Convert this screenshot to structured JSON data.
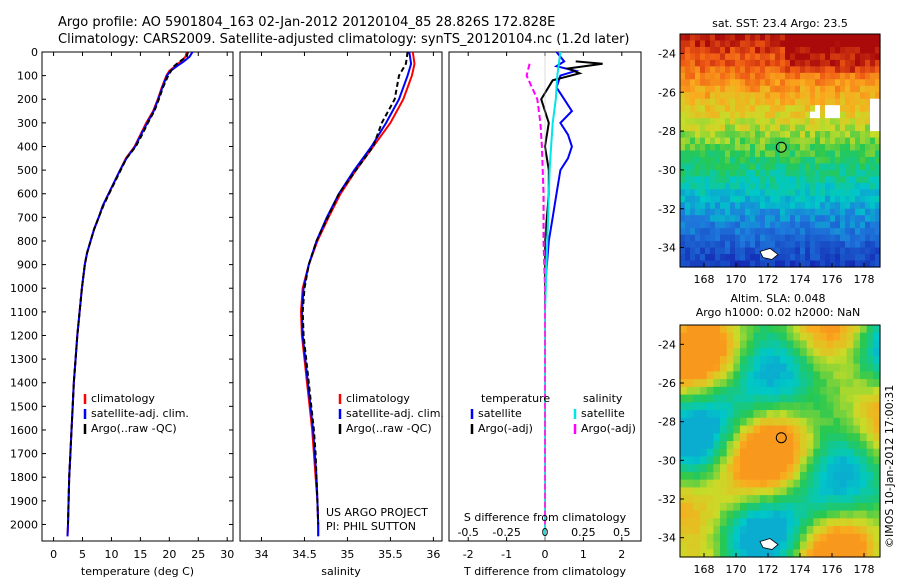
{
  "titles": {
    "line1": "Argo profile: AO 5901804_163 02-Jan-2012 20120104_85 28.826S 172.828E",
    "line2": "Climatology: CARS2009. Satellite-adjusted climatology: synTS_20120104.nc (1.2d later)"
  },
  "colors": {
    "climatology": "#ff0000",
    "satellite": "#0000ff",
    "argo": "#000000",
    "s_satellite": "#00e5e5",
    "s_argo": "#ff00ff"
  },
  "chart_data": [
    {
      "type": "line",
      "name": "temperature-profile",
      "xlabel": "temperature (deg C)",
      "ylabel": "",
      "xlim": [
        -2,
        31
      ],
      "ylim": [
        0,
        2070
      ],
      "y_reversed": true,
      "xticks": [
        0,
        5,
        10,
        15,
        20,
        25,
        30
      ],
      "yticks": [
        0,
        100,
        200,
        300,
        400,
        500,
        600,
        700,
        800,
        900,
        1000,
        1100,
        1200,
        1300,
        1400,
        1500,
        1600,
        1700,
        1800,
        1900,
        2000
      ],
      "legend": [
        "climatology",
        "satellite-adj. clim.",
        "Argo(..raw -QC)"
      ],
      "series": [
        {
          "name": "climatology",
          "color": "#ff0000",
          "dash": "",
          "points": [
            [
              23.0,
              0
            ],
            [
              22.8,
              20
            ],
            [
              22.0,
              40
            ],
            [
              21.0,
              60
            ],
            [
              20.0,
              80
            ],
            [
              19.5,
              100
            ],
            [
              18.7,
              150
            ],
            [
              18.0,
              200
            ],
            [
              17.2,
              250
            ],
            [
              16.0,
              300
            ],
            [
              15.0,
              350
            ],
            [
              14.0,
              400
            ],
            [
              12.5,
              450
            ],
            [
              11.5,
              500
            ],
            [
              10.5,
              550
            ],
            [
              9.5,
              600
            ],
            [
              8.5,
              650
            ],
            [
              7.8,
              700
            ],
            [
              7.0,
              750
            ],
            [
              6.4,
              800
            ],
            [
              5.8,
              850
            ],
            [
              5.4,
              900
            ],
            [
              4.9,
              1000
            ],
            [
              4.5,
              1100
            ],
            [
              4.1,
              1200
            ],
            [
              3.8,
              1300
            ],
            [
              3.5,
              1400
            ],
            [
              3.3,
              1500
            ],
            [
              3.1,
              1600
            ],
            [
              2.9,
              1700
            ],
            [
              2.7,
              1800
            ],
            [
              2.6,
              1900
            ],
            [
              2.5,
              2000
            ],
            [
              2.4,
              2050
            ]
          ]
        },
        {
          "name": "satellite-adj. clim.",
          "color": "#0000ff",
          "dash": "",
          "points": [
            [
              24.0,
              0
            ],
            [
              23.5,
              20
            ],
            [
              22.5,
              40
            ],
            [
              21.3,
              60
            ],
            [
              20.2,
              80
            ],
            [
              19.6,
              100
            ],
            [
              18.8,
              150
            ],
            [
              18.1,
              200
            ],
            [
              17.3,
              250
            ],
            [
              16.2,
              300
            ],
            [
              15.1,
              350
            ],
            [
              14.1,
              400
            ],
            [
              12.6,
              450
            ],
            [
              11.5,
              500
            ],
            [
              10.5,
              550
            ],
            [
              9.5,
              600
            ],
            [
              8.5,
              650
            ],
            [
              7.8,
              700
            ],
            [
              7.0,
              750
            ],
            [
              6.4,
              800
            ],
            [
              5.8,
              850
            ],
            [
              5.4,
              900
            ],
            [
              4.9,
              1000
            ],
            [
              4.5,
              1100
            ],
            [
              4.1,
              1200
            ],
            [
              3.8,
              1300
            ],
            [
              3.5,
              1400
            ],
            [
              3.3,
              1500
            ],
            [
              3.1,
              1600
            ],
            [
              2.9,
              1700
            ],
            [
              2.7,
              1800
            ],
            [
              2.6,
              1900
            ],
            [
              2.5,
              2000
            ],
            [
              2.4,
              2050
            ]
          ]
        },
        {
          "name": "Argo(..raw -QC)",
          "color": "#000000",
          "dash": "5,3",
          "points": [
            [
              23.2,
              0
            ],
            [
              23.0,
              20
            ],
            [
              21.8,
              40
            ],
            [
              20.8,
              60
            ],
            [
              20.3,
              80
            ],
            [
              19.8,
              100
            ],
            [
              18.9,
              150
            ],
            [
              18.2,
              200
            ],
            [
              17.4,
              250
            ],
            [
              16.3,
              300
            ],
            [
              15.3,
              350
            ],
            [
              14.2,
              400
            ],
            [
              12.6,
              450
            ],
            [
              11.6,
              500
            ],
            [
              10.6,
              550
            ],
            [
              9.6,
              600
            ],
            [
              8.6,
              650
            ],
            [
              7.8,
              700
            ],
            [
              7.0,
              750
            ],
            [
              6.4,
              800
            ],
            [
              5.8,
              850
            ],
            [
              5.4,
              900
            ],
            [
              4.9,
              1000
            ],
            [
              4.5,
              1100
            ],
            [
              4.1,
              1200
            ],
            [
              3.8,
              1300
            ],
            [
              3.5,
              1400
            ],
            [
              3.3,
              1500
            ],
            [
              3.1,
              1600
            ],
            [
              2.9,
              1700
            ],
            [
              2.7,
              1800
            ],
            [
              2.6,
              1900
            ],
            [
              2.5,
              2000
            ]
          ]
        }
      ]
    },
    {
      "type": "line",
      "name": "salinity-profile",
      "xlabel": "salinity",
      "ylabel": "",
      "xlim": [
        33.75,
        36.1
      ],
      "ylim": [
        0,
        2070
      ],
      "y_reversed": true,
      "xticks": [
        34,
        34.5,
        35,
        35.5,
        36
      ],
      "legend": [
        "climatology",
        "satellite-adj. clim.",
        "Argo(..raw -QC)"
      ],
      "annotations": [
        "US ARGO PROJECT",
        "PI: PHIL SUTTON"
      ],
      "series": [
        {
          "name": "climatology",
          "color": "#ff0000",
          "dash": "",
          "points": [
            [
              35.76,
              0
            ],
            [
              35.78,
              50
            ],
            [
              35.75,
              100
            ],
            [
              35.65,
              200
            ],
            [
              35.5,
              300
            ],
            [
              35.3,
              400
            ],
            [
              35.1,
              500
            ],
            [
              34.92,
              600
            ],
            [
              34.78,
              700
            ],
            [
              34.65,
              800
            ],
            [
              34.55,
              900
            ],
            [
              34.48,
              1000
            ],
            [
              34.46,
              1100
            ],
            [
              34.47,
              1200
            ],
            [
              34.5,
              1300
            ],
            [
              34.53,
              1400
            ],
            [
              34.56,
              1500
            ],
            [
              34.59,
              1600
            ],
            [
              34.61,
              1700
            ],
            [
              34.63,
              1800
            ],
            [
              34.65,
              1900
            ],
            [
              34.66,
              2000
            ],
            [
              34.66,
              2050
            ]
          ]
        },
        {
          "name": "satellite-adj. clim.",
          "color": "#0000ff",
          "dash": "",
          "points": [
            [
              35.72,
              0
            ],
            [
              35.74,
              50
            ],
            [
              35.7,
              100
            ],
            [
              35.6,
              200
            ],
            [
              35.45,
              300
            ],
            [
              35.28,
              400
            ],
            [
              35.08,
              500
            ],
            [
              34.9,
              600
            ],
            [
              34.76,
              700
            ],
            [
              34.64,
              800
            ],
            [
              34.55,
              900
            ],
            [
              34.49,
              1000
            ],
            [
              34.47,
              1100
            ],
            [
              34.48,
              1200
            ],
            [
              34.51,
              1300
            ],
            [
              34.54,
              1400
            ],
            [
              34.57,
              1500
            ],
            [
              34.6,
              1600
            ],
            [
              34.62,
              1700
            ],
            [
              34.64,
              1800
            ],
            [
              34.65,
              1900
            ],
            [
              34.66,
              2000
            ],
            [
              34.66,
              2050
            ]
          ]
        },
        {
          "name": "Argo(..raw -QC)",
          "color": "#000000",
          "dash": "5,3",
          "points": [
            [
              35.7,
              0
            ],
            [
              35.68,
              50
            ],
            [
              35.6,
              100
            ],
            [
              35.55,
              200
            ],
            [
              35.4,
              300
            ],
            [
              35.3,
              400
            ],
            [
              35.1,
              500
            ],
            [
              34.9,
              600
            ],
            [
              34.77,
              700
            ],
            [
              34.64,
              800
            ],
            [
              34.55,
              900
            ],
            [
              34.5,
              1000
            ],
            [
              34.48,
              1100
            ],
            [
              34.49,
              1200
            ],
            [
              34.52,
              1300
            ],
            [
              34.55,
              1400
            ],
            [
              34.58,
              1500
            ],
            [
              34.61,
              1600
            ],
            [
              34.63,
              1700
            ],
            [
              34.64,
              1800
            ],
            [
              34.65,
              1900
            ],
            [
              34.66,
              2000
            ]
          ]
        }
      ]
    },
    {
      "type": "line",
      "name": "difference-profile",
      "xlabel": "T difference from climatology",
      "xlabel_top": "S difference from climatology",
      "xlim": [
        -2.5,
        2.5
      ],
      "ylim": [
        0,
        2070
      ],
      "y_reversed": true,
      "xticks": [
        -2,
        -1,
        0,
        1,
        2
      ],
      "xticks_top": [
        -0.5,
        -0.25,
        0,
        0.25,
        0.5
      ],
      "s_scale": 0.25,
      "legend_temperature_title": "temperature",
      "legend_salinity_title": "salinity",
      "legend": [
        "satellite",
        "Argo(-adj)",
        "satellite",
        "Argo(-adj)"
      ],
      "series": [
        {
          "name": "satellite",
          "color": "#0000ff",
          "dash": "",
          "points": [
            [
              0.3,
              0
            ],
            [
              0.5,
              40
            ],
            [
              0.3,
              60
            ],
            [
              0.8,
              80
            ],
            [
              0.4,
              100
            ],
            [
              0.3,
              150
            ],
            [
              0.5,
              200
            ],
            [
              0.7,
              250
            ],
            [
              0.4,
              300
            ],
            [
              0.6,
              350
            ],
            [
              0.7,
              400
            ],
            [
              0.6,
              450
            ],
            [
              0.4,
              500
            ],
            [
              0.3,
              600
            ],
            [
              0.2,
              700
            ],
            [
              0.1,
              800
            ],
            [
              0.05,
              900
            ],
            [
              0.0,
              1000
            ],
            [
              0.0,
              2050
            ]
          ]
        },
        {
          "name": "Argo(-adj)",
          "color": "#000000",
          "dash": "",
          "points": [
            [
              0.8,
              40
            ],
            [
              1.5,
              50
            ],
            [
              0.6,
              70
            ],
            [
              0.9,
              90
            ],
            [
              0.2,
              120
            ],
            [
              -0.1,
              200
            ],
            [
              0.1,
              300
            ],
            [
              0.0,
              400
            ],
            [
              0.1,
              500
            ],
            [
              0.1,
              600
            ],
            [
              0.05,
              700
            ],
            [
              0.0,
              800
            ],
            [
              0.0,
              2000
            ]
          ]
        },
        {
          "name": "satellite",
          "color": "#00e5e5",
          "dash": "",
          "points": [
            [
              0.1,
              0
            ],
            [
              0.08,
              100
            ],
            [
              0.07,
              200
            ],
            [
              0.05,
              300
            ],
            [
              0.04,
              400
            ],
            [
              0.03,
              500
            ],
            [
              0.02,
              700
            ],
            [
              0.01,
              900
            ],
            [
              0.0,
              1100
            ],
            [
              0.0,
              2050
            ]
          ]
        },
        {
          "name": "Argo(-adj)",
          "color": "#ff00ff",
          "dash": "6,3",
          "points": [
            [
              -0.1,
              50
            ],
            [
              -0.12,
              100
            ],
            [
              -0.05,
              200
            ],
            [
              -0.03,
              300
            ],
            [
              -0.02,
              400
            ],
            [
              -0.01,
              600
            ],
            [
              -0.01,
              800
            ],
            [
              0.0,
              1000
            ],
            [
              0.0,
              2000
            ]
          ]
        }
      ]
    },
    {
      "type": "heatmap",
      "name": "sst-map",
      "title": "sat. SST: 23.4  Argo: 23.5",
      "xlim": [
        166.5,
        179
      ],
      "ylim": [
        -35,
        -23
      ],
      "xticks": [
        168,
        170,
        172,
        174,
        176,
        178
      ],
      "yticks": [
        -24,
        -26,
        -28,
        -30,
        -32,
        -34
      ],
      "marker": [
        172.83,
        -28.83
      ]
    },
    {
      "type": "heatmap",
      "name": "sla-map",
      "title": "Altim. SLA: 0.048",
      "subtitle": "Argo h1000: 0.02 h2000: NaN",
      "xlim": [
        166.5,
        179
      ],
      "ylim": [
        -35,
        -23
      ],
      "xticks": [
        168,
        170,
        172,
        174,
        176,
        178
      ],
      "yticks": [
        -24,
        -26,
        -28,
        -30,
        -32,
        -34
      ],
      "marker": [
        172.83,
        -28.83
      ]
    }
  ],
  "side_label": "©IMOS 10-Jan-2012 17:00:31"
}
